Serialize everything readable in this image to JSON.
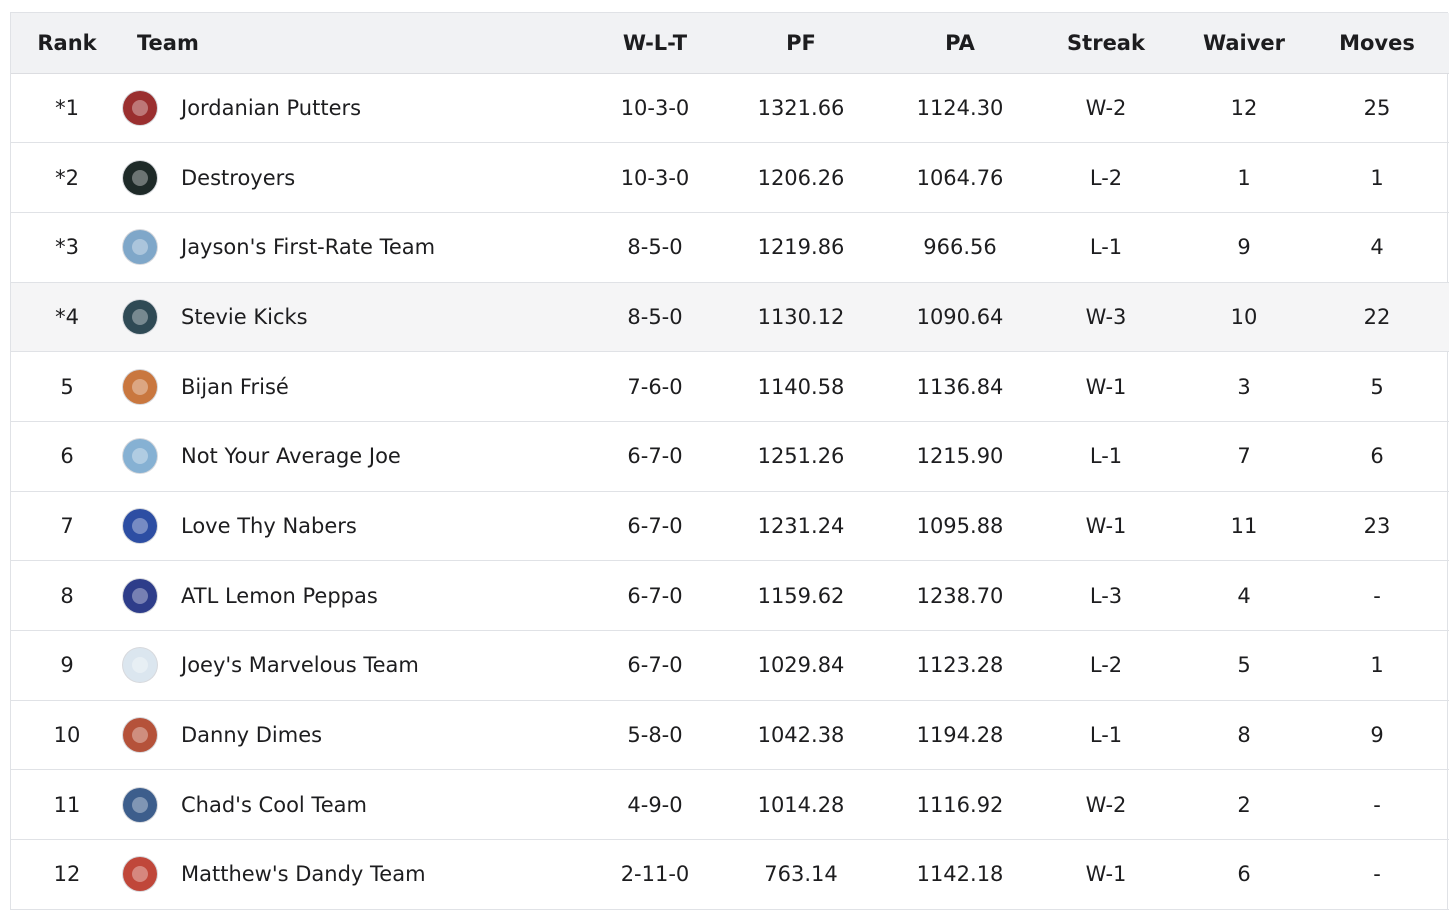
{
  "headers": {
    "rank": "Rank",
    "team": "Team",
    "wlt": "W-L-T",
    "pf": "PF",
    "pa": "PA",
    "streak": "Streak",
    "waiver": "Waiver",
    "moves": "Moves"
  },
  "rows": [
    {
      "rank": "*1",
      "team": "Jordanian Putters",
      "logo": "team-logo",
      "logo_color": "#9a2f2f",
      "wlt": "10-3-0",
      "pf": "1321.66",
      "pa": "1124.30",
      "streak": "W-2",
      "waiver": "12",
      "moves": "25"
    },
    {
      "rank": "*2",
      "team": "Destroyers",
      "logo": "team-logo",
      "logo_color": "#1e2a28",
      "wlt": "10-3-0",
      "pf": "1206.26",
      "pa": "1064.76",
      "streak": "L-2",
      "waiver": "1",
      "moves": "1"
    },
    {
      "rank": "*3",
      "team": "Jayson's First-Rate Team",
      "logo": "team-logo",
      "logo_color": "#7fa7c9",
      "wlt": "8-5-0",
      "pf": "1219.86",
      "pa": "966.56",
      "streak": "L-1",
      "waiver": "9",
      "moves": "4"
    },
    {
      "rank": "*4",
      "team": "Stevie Kicks",
      "logo": "team-logo",
      "logo_color": "#2f4a55",
      "wlt": "8-5-0",
      "pf": "1130.12",
      "pa": "1090.64",
      "streak": "W-3",
      "waiver": "10",
      "moves": "22"
    },
    {
      "rank": "5",
      "team": "Bijan Frisé",
      "logo": "team-logo",
      "logo_color": "#c9773f",
      "wlt": "7-6-0",
      "pf": "1140.58",
      "pa": "1136.84",
      "streak": "W-1",
      "waiver": "3",
      "moves": "5"
    },
    {
      "rank": "6",
      "team": "Not Your Average Joe",
      "logo": "team-logo",
      "logo_color": "#86b1d3",
      "wlt": "6-7-0",
      "pf": "1251.26",
      "pa": "1215.90",
      "streak": "L-1",
      "waiver": "7",
      "moves": "6"
    },
    {
      "rank": "7",
      "team": "Love Thy Nabers",
      "logo": "team-logo",
      "logo_color": "#2d4ea3",
      "wlt": "6-7-0",
      "pf": "1231.24",
      "pa": "1095.88",
      "streak": "W-1",
      "waiver": "11",
      "moves": "23"
    },
    {
      "rank": "8",
      "team": "ATL Lemon Peppas",
      "logo": "team-logo",
      "logo_color": "#2e3d8a",
      "wlt": "6-7-0",
      "pf": "1159.62",
      "pa": "1238.70",
      "streak": "L-3",
      "waiver": "4",
      "moves": "-"
    },
    {
      "rank": "9",
      "team": "Joey's Marvelous Team",
      "logo": "team-logo",
      "logo_color": "#dbe6ef",
      "wlt": "6-7-0",
      "pf": "1029.84",
      "pa": "1123.28",
      "streak": "L-2",
      "waiver": "5",
      "moves": "1"
    },
    {
      "rank": "10",
      "team": "Danny Dimes",
      "logo": "team-logo",
      "logo_color": "#b5523a",
      "wlt": "5-8-0",
      "pf": "1042.38",
      "pa": "1194.28",
      "streak": "L-1",
      "waiver": "8",
      "moves": "9"
    },
    {
      "rank": "11",
      "team": "Chad's Cool Team",
      "logo": "team-logo",
      "logo_color": "#3d5e8c",
      "wlt": "4-9-0",
      "pf": "1014.28",
      "pa": "1116.92",
      "streak": "W-2",
      "waiver": "2",
      "moves": "-"
    },
    {
      "rank": "12",
      "team": "Matthew's Dandy Team",
      "logo": "team-logo",
      "logo_color": "#c0473a",
      "wlt": "2-11-0",
      "pf": "763.14",
      "pa": "1142.18",
      "streak": "W-1",
      "waiver": "6",
      "moves": "-"
    }
  ],
  "highlight_color": "#f5f5f6"
}
